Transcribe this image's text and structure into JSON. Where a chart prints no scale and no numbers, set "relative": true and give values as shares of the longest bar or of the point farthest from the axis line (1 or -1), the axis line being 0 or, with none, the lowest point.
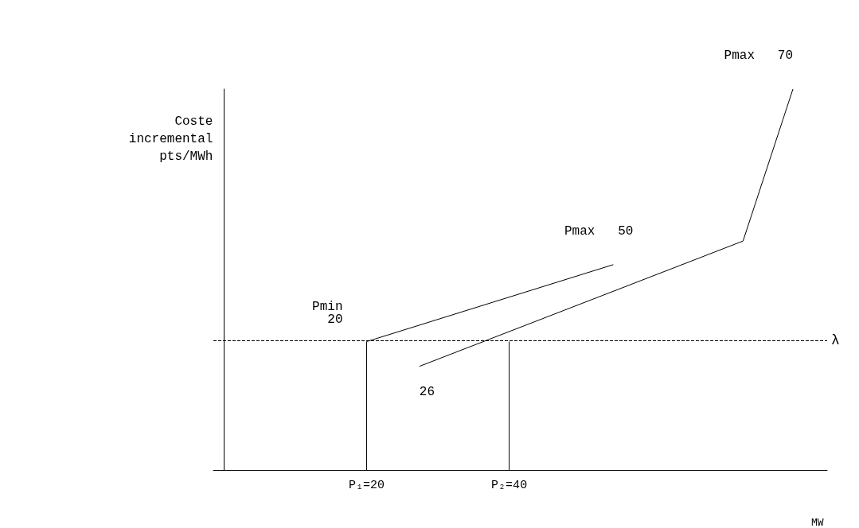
{
  "chart_data": {
    "type": "line",
    "relative": true,
    "ylabel": "Coste\nincremental\npts/MWh",
    "xlabel": "MW",
    "xlim": [
      -1.5,
      84.6
    ],
    "xticks": [
      {
        "value": 20,
        "label": "P₁=20"
      },
      {
        "value": 40,
        "label": "P₂=40"
      }
    ],
    "tick_labels": "x",
    "grid": false,
    "marker": "none",
    "line_style": "solid",
    "series": [
      {
        "color": "#000000",
        "x": [
          20,
          54.6
        ],
        "values": [
          0.337,
          0.539
        ]
      },
      {
        "color": "#000000",
        "x": [
          27.4,
          72.8,
          79.8
        ],
        "values": [
          0.272,
          0.601,
          1
        ]
      },
      {
        "color": "#000000",
        "x": [
          20,
          20
        ],
        "values": [
          0,
          0.337
        ]
      },
      {
        "color": "#000000",
        "x": [
          40,
          40
        ],
        "values": [
          0,
          0.337
        ]
      }
    ],
    "ref_lines": [
      {
        "axis": "y",
        "value": 0.337,
        "label": "λ",
        "color": "#000000",
        "line_style": "dashed"
      }
    ],
    "annotations": [
      {
        "text": "Pmin\n20",
        "x": 20,
        "y": 0.337
      },
      {
        "text": "Pmax   50",
        "x": 54.6,
        "y": 0.539
      },
      {
        "text": "26",
        "x": 27.4,
        "y": 0.272
      },
      {
        "text": "Pmax   70",
        "x": 79.8,
        "y": 1
      }
    ]
  }
}
